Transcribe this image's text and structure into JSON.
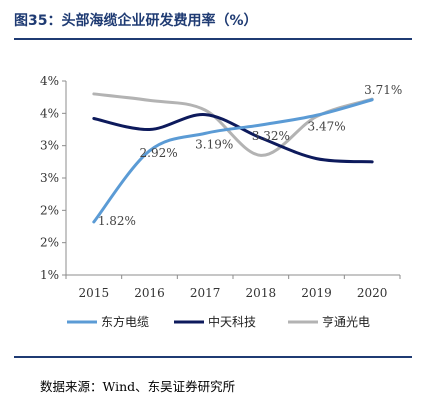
{
  "header": {
    "title": "图35：头部海缆企业研发费用率（%）"
  },
  "footer": {
    "source": "数据来源：Wind、东吴证券研究所"
  },
  "chart_data": {
    "type": "line",
    "title": "图35：头部海缆企业研发费用率（%）",
    "xlabel": "",
    "ylabel": "",
    "x": [
      "2015",
      "2016",
      "2017",
      "2018",
      "2019",
      "2020"
    ],
    "ylim": [
      1,
      4
    ],
    "yticks": [
      1,
      1.5,
      2,
      2.5,
      3,
      3.5,
      4
    ],
    "ytick_labels": [
      "1%",
      "2%",
      "2%",
      "3%",
      "3%",
      "4%",
      "4%"
    ],
    "grid": false,
    "legend_position": "bottom",
    "series": [
      {
        "name": "东方电缆",
        "color": "#5b9bd5",
        "values": [
          1.82,
          2.92,
          3.19,
          3.32,
          3.47,
          3.71
        ],
        "labels": [
          "1.82%",
          "2.92%",
          "3.19%",
          "3.32%",
          "3.47%",
          "3.71%"
        ]
      },
      {
        "name": "中天科技",
        "color": "#0d1a5c",
        "values": [
          3.42,
          3.25,
          3.48,
          3.12,
          2.8,
          2.75
        ]
      },
      {
        "name": "亨通光电",
        "color": "#b3b3b3",
        "values": [
          3.8,
          3.7,
          3.55,
          2.85,
          3.45,
          3.72
        ]
      }
    ]
  }
}
